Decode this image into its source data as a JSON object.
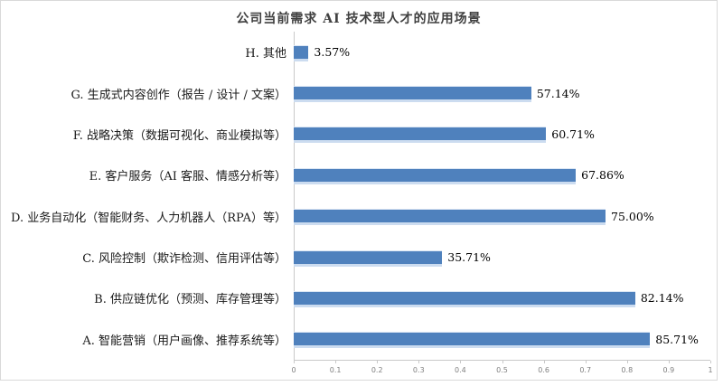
{
  "frame": {
    "background": "#ffffff",
    "border_color": "#d9d9d9"
  },
  "chart_data": {
    "type": "bar",
    "orientation": "horizontal",
    "title": "公司当前需求 AI 技术型人才的应用场景",
    "title_color": "#404040",
    "bar_color": "#4f81bd",
    "bar_edge_highlight": "#ccdcf0",
    "axis_color": "#c9c9c9",
    "tick_label_color": "#808080",
    "categories": [
      "H. 其他",
      "G. 生成式内容创作（报告 / 设计 / 文案）",
      "F. 战略决策（数据可视化、商业模拟等）",
      "E. 客户服务（AI 客服、情感分析等）",
      "D. 业务自动化（智能财务、人力机器人（RPA）等）",
      "C. 风险控制（欺诈检测、信用评估等）",
      "B. 供应链优化（预测、库存管理等）",
      "A. 智能营销（用户画像、推荐系统等）"
    ],
    "values": [
      3.57,
      57.14,
      60.71,
      67.86,
      75.0,
      35.71,
      82.14,
      85.71
    ],
    "value_labels": [
      "3.57%",
      "57.14%",
      "60.71%",
      "67.86%",
      "75.00%",
      "35.71%",
      "82.14%",
      "85.71%"
    ],
    "xlabel": "",
    "ylabel": "",
    "xlim": [
      0,
      1
    ],
    "x_ticks": [
      "0",
      "0.1",
      "0.2",
      "0.3",
      "0.4",
      "0.5",
      "0.6",
      "0.7",
      "0.8",
      "0.9",
      "1"
    ],
    "legend": "none",
    "grid": "off"
  }
}
